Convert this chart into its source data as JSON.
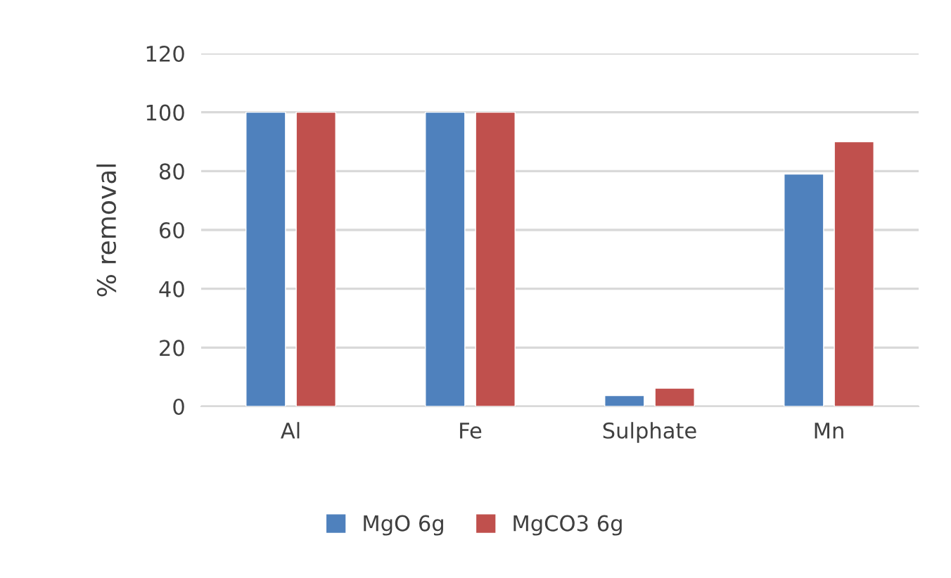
{
  "chart_data": {
    "type": "bar",
    "ylabel": "% removal",
    "categories": [
      "Al",
      "Fe",
      "Sulphate",
      "Mn"
    ],
    "series": [
      {
        "name": "MgO 6g",
        "color": "#4f81bd",
        "values": [
          100,
          100,
          3.7,
          79
        ]
      },
      {
        "name": "MgCO3 6g",
        "color": "#c0504d",
        "values": [
          100,
          100,
          6.2,
          90
        ]
      }
    ],
    "ylim": [
      0,
      120
    ],
    "yticks": [
      0,
      20,
      40,
      60,
      80,
      100,
      120
    ],
    "grid": "y",
    "legend": "bottom"
  }
}
